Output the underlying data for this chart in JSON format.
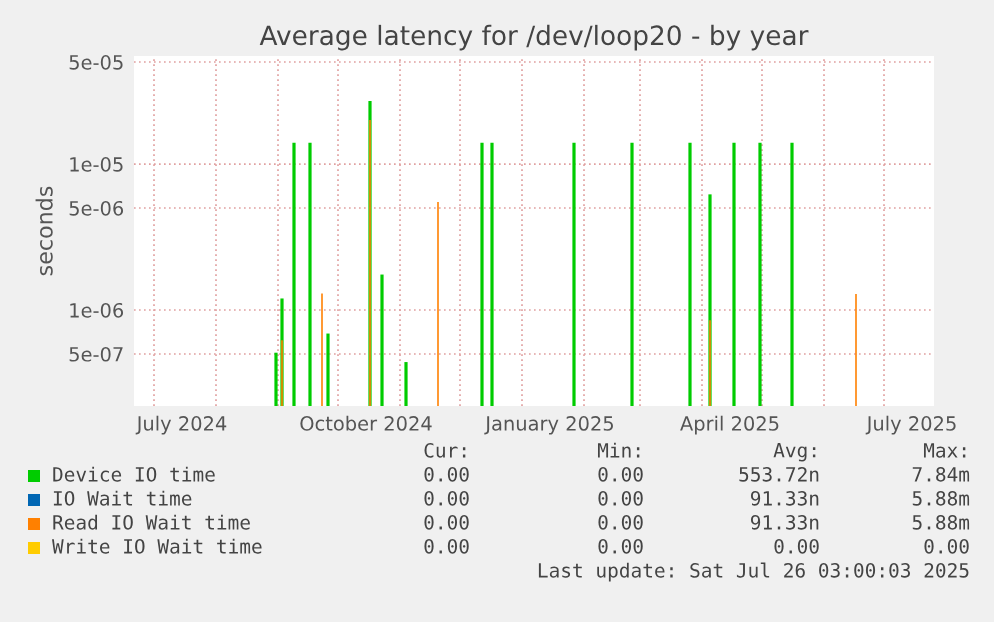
{
  "chart_data": {
    "type": "bar",
    "title": "Average latency for /dev/loop20 - by year",
    "ylabel": "seconds",
    "log": "y",
    "grid": true,
    "legend": "bottom",
    "xlim": [
      "2024-06-21",
      "2025-07-26"
    ],
    "xticks": [
      {
        "value": "2024-07-15",
        "label": "July 2024"
      },
      {
        "value": "2024-10-15",
        "label": "October 2024"
      },
      {
        "value": "2025-01-15",
        "label": "January 2025"
      },
      {
        "value": "2025-04-15",
        "label": "April 2025"
      },
      {
        "value": "2025-07-15",
        "label": "July 2025"
      }
    ],
    "ylim": [
      2.2e-07,
      5.5e-05
    ],
    "yticks": [
      {
        "value": 5e-07,
        "label": "5e-07"
      },
      {
        "value": 1e-06,
        "label": "1e-06"
      },
      {
        "value": 5e-06,
        "label": "5e-06"
      },
      {
        "value": 1e-05,
        "label": "1e-05"
      },
      {
        "value": 5e-05,
        "label": "5e-05"
      }
    ],
    "series": [
      {
        "name": "Device IO time",
        "color": "#00cc00",
        "x": [
          "2024-08-31",
          "2024-09-03",
          "2024-09-09",
          "2024-09-17",
          "2024-09-26",
          "2024-10-17",
          "2024-10-23",
          "2024-11-04",
          "2024-12-12",
          "2024-12-17",
          "2025-01-27",
          "2025-02-25",
          "2025-03-26",
          "2025-04-05",
          "2025-04-17",
          "2025-04-30",
          "2025-05-16"
        ],
        "values": [
          5.1e-07,
          1.2e-06,
          1.4e-05,
          1.4e-05,
          6.9e-07,
          2.7e-05,
          1.75e-06,
          4.4e-07,
          1.4e-05,
          1.4e-05,
          1.4e-05,
          1.4e-05,
          1.4e-05,
          6.2e-06,
          1.4e-05,
          1.4e-05,
          1.4e-05
        ]
      },
      {
        "name": "IO Wait time",
        "color": "#0066b3"
      },
      {
        "name": "Read IO Wait time",
        "color": "#ff8000",
        "x": [
          "2024-09-03",
          "2024-09-23",
          "2024-10-17",
          "2024-11-20",
          "2025-04-05",
          "2025-06-17"
        ],
        "values": [
          6.2e-07,
          1.3e-06,
          2e-05,
          5.5e-06,
          8.5e-07,
          1.29e-06
        ]
      },
      {
        "name": "Write IO Wait time",
        "color": "#ffcc00"
      }
    ],
    "annotations": [
      "Cur:",
      "Min:",
      "Avg:",
      "Max:",
      "0.00",
      "0.00",
      "553.72n",
      "7.84m",
      "0.00",
      "0.00",
      "91.33n",
      "5.88m",
      "0.00",
      "0.00",
      "91.33n",
      "5.88m",
      "0.00",
      "0.00",
      "0.00",
      "0.00",
      "Last update: Sat Jul 26 03:00:03 2025"
    ]
  }
}
